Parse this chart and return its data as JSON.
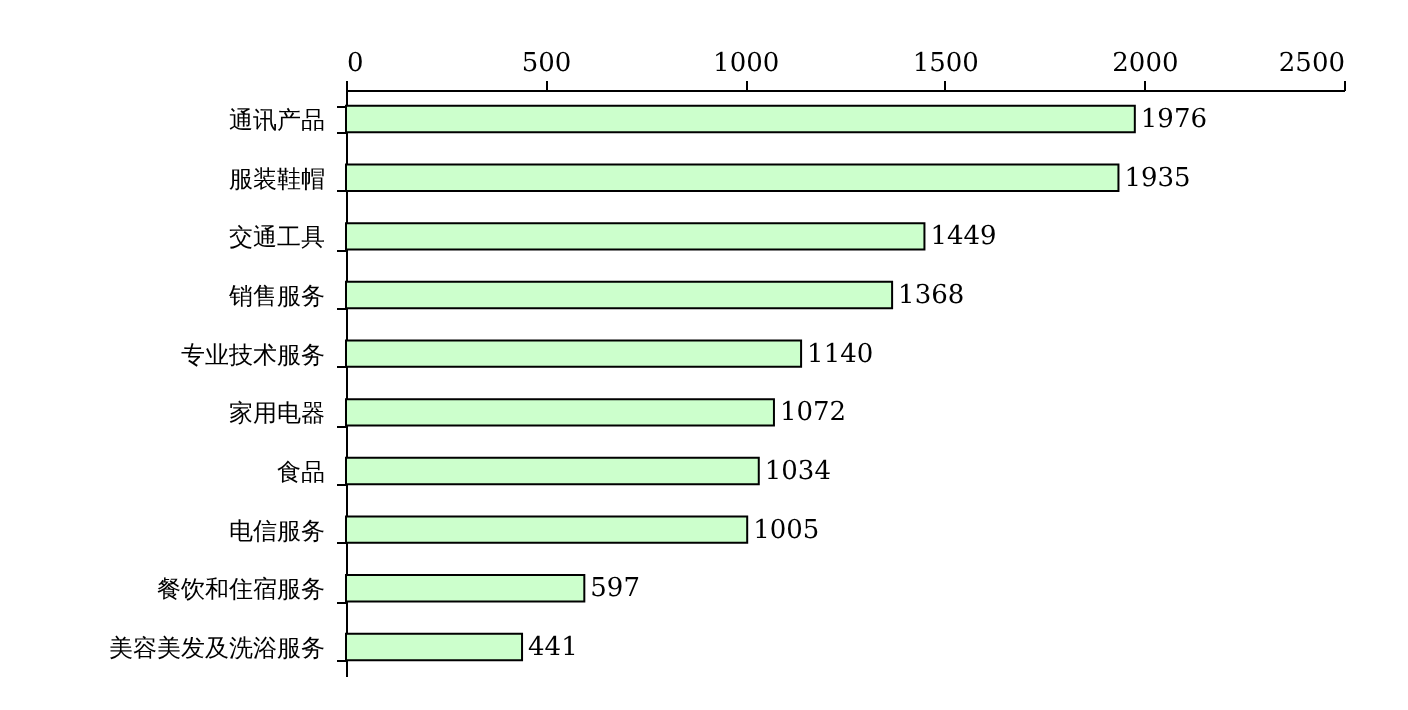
{
  "chart_data": {
    "type": "bar",
    "orientation": "horizontal",
    "categories": [
      "通讯产品",
      "服装鞋帽",
      "交通工具",
      "销售服务",
      "专业技术服务",
      "家用电器",
      "食品",
      "电信服务",
      "餐饮和住宿服务",
      "美容美发及洗浴服务"
    ],
    "values": [
      1976,
      1935,
      1449,
      1368,
      1140,
      1072,
      1034,
      1005,
      597,
      441
    ],
    "color": "#ccffcc",
    "xlim": [
      0,
      2500
    ],
    "xticks": [
      0,
      500,
      1000,
      1500,
      2000,
      2500
    ],
    "data_labels": true
  }
}
